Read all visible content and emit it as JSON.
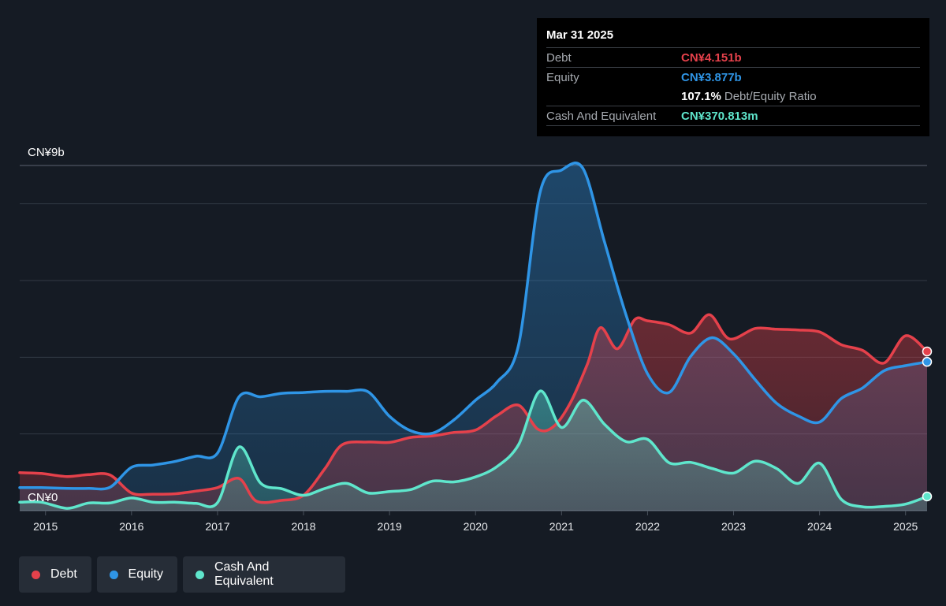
{
  "colors": {
    "debt": "#e5414b",
    "equity": "#2f95e6",
    "cash": "#5fe6cc",
    "background": "#151b24",
    "grid": "#323a44"
  },
  "tooltip": {
    "date": "Mar 31 2025",
    "debt_label": "Debt",
    "debt_value": "CN¥4.151b",
    "equity_label": "Equity",
    "equity_value": "CN¥3.877b",
    "ratio_value": "107.1%",
    "ratio_label": "Debt/Equity Ratio",
    "cash_label": "Cash And Equivalent",
    "cash_value": "CN¥370.813m"
  },
  "legend": {
    "debt": "Debt",
    "equity": "Equity",
    "cash": "Cash And Equivalent"
  },
  "chart_data": {
    "type": "area",
    "y_unit": "CN¥ billions",
    "ylim": [
      0,
      9
    ],
    "y_tick_labels": [
      "CN¥0",
      "CN¥9b"
    ],
    "x_tick_labels": [
      "2015",
      "2016",
      "2017",
      "2018",
      "2019",
      "2020",
      "2021",
      "2022",
      "2023",
      "2024",
      "2025"
    ],
    "x_range": [
      2014.7,
      2025.25
    ],
    "grid": true,
    "series": [
      {
        "name": "Debt",
        "points": [
          [
            2014.7,
            0.99
          ],
          [
            2014.95,
            0.97
          ],
          [
            2015.25,
            0.89
          ],
          [
            2015.5,
            0.94
          ],
          [
            2015.75,
            0.93
          ],
          [
            2016.0,
            0.46
          ],
          [
            2016.25,
            0.43
          ],
          [
            2016.5,
            0.44
          ],
          [
            2016.75,
            0.51
          ],
          [
            2017.0,
            0.6
          ],
          [
            2017.25,
            0.84
          ],
          [
            2017.45,
            0.25
          ],
          [
            2017.75,
            0.27
          ],
          [
            2018.0,
            0.4
          ],
          [
            2018.25,
            1.1
          ],
          [
            2018.45,
            1.72
          ],
          [
            2018.75,
            1.79
          ],
          [
            2019.0,
            1.78
          ],
          [
            2019.25,
            1.91
          ],
          [
            2019.5,
            1.95
          ],
          [
            2019.75,
            2.04
          ],
          [
            2020.0,
            2.1
          ],
          [
            2020.25,
            2.48
          ],
          [
            2020.5,
            2.75
          ],
          [
            2020.72,
            2.13
          ],
          [
            2020.9,
            2.18
          ],
          [
            2021.1,
            2.8
          ],
          [
            2021.3,
            3.82
          ],
          [
            2021.45,
            4.77
          ],
          [
            2021.65,
            4.22
          ],
          [
            2021.85,
            4.98
          ],
          [
            2022.0,
            4.95
          ],
          [
            2022.25,
            4.85
          ],
          [
            2022.5,
            4.63
          ],
          [
            2022.72,
            5.11
          ],
          [
            2022.95,
            4.48
          ],
          [
            2023.25,
            4.75
          ],
          [
            2023.5,
            4.73
          ],
          [
            2023.75,
            4.71
          ],
          [
            2024.0,
            4.66
          ],
          [
            2024.25,
            4.33
          ],
          [
            2024.5,
            4.18
          ],
          [
            2024.75,
            3.85
          ],
          [
            2025.0,
            4.56
          ],
          [
            2025.25,
            4.15
          ]
        ]
      },
      {
        "name": "Equity",
        "points": [
          [
            2014.7,
            0.6
          ],
          [
            2014.95,
            0.6
          ],
          [
            2015.25,
            0.58
          ],
          [
            2015.5,
            0.58
          ],
          [
            2015.75,
            0.61
          ],
          [
            2016.0,
            1.13
          ],
          [
            2016.25,
            1.19
          ],
          [
            2016.5,
            1.28
          ],
          [
            2016.75,
            1.42
          ],
          [
            2017.0,
            1.5
          ],
          [
            2017.25,
            2.97
          ],
          [
            2017.5,
            2.97
          ],
          [
            2017.75,
            3.06
          ],
          [
            2018.0,
            3.08
          ],
          [
            2018.25,
            3.11
          ],
          [
            2018.5,
            3.11
          ],
          [
            2018.75,
            3.1
          ],
          [
            2019.0,
            2.46
          ],
          [
            2019.25,
            2.08
          ],
          [
            2019.5,
            2.02
          ],
          [
            2019.75,
            2.37
          ],
          [
            2020.0,
            2.88
          ],
          [
            2020.25,
            3.35
          ],
          [
            2020.5,
            4.32
          ],
          [
            2020.75,
            8.3
          ],
          [
            2021.0,
            8.88
          ],
          [
            2021.25,
            8.92
          ],
          [
            2021.5,
            7.0
          ],
          [
            2021.75,
            5.1
          ],
          [
            2022.0,
            3.57
          ],
          [
            2022.25,
            3.08
          ],
          [
            2022.5,
            4.02
          ],
          [
            2022.75,
            4.51
          ],
          [
            2023.0,
            4.09
          ],
          [
            2023.25,
            3.42
          ],
          [
            2023.5,
            2.8
          ],
          [
            2023.75,
            2.47
          ],
          [
            2024.0,
            2.31
          ],
          [
            2024.25,
            2.92
          ],
          [
            2024.5,
            3.2
          ],
          [
            2024.75,
            3.65
          ],
          [
            2025.0,
            3.78
          ],
          [
            2025.25,
            3.88
          ]
        ]
      },
      {
        "name": "Cash And Equivalent",
        "points": [
          [
            2014.7,
            0.22
          ],
          [
            2014.95,
            0.22
          ],
          [
            2015.25,
            0.06
          ],
          [
            2015.5,
            0.2
          ],
          [
            2015.75,
            0.2
          ],
          [
            2016.0,
            0.33
          ],
          [
            2016.25,
            0.22
          ],
          [
            2016.5,
            0.22
          ],
          [
            2016.75,
            0.19
          ],
          [
            2017.0,
            0.21
          ],
          [
            2017.25,
            1.66
          ],
          [
            2017.5,
            0.72
          ],
          [
            2017.75,
            0.57
          ],
          [
            2018.0,
            0.4
          ],
          [
            2018.25,
            0.58
          ],
          [
            2018.5,
            0.71
          ],
          [
            2018.75,
            0.46
          ],
          [
            2019.0,
            0.5
          ],
          [
            2019.25,
            0.55
          ],
          [
            2019.5,
            0.77
          ],
          [
            2019.75,
            0.75
          ],
          [
            2020.0,
            0.88
          ],
          [
            2020.25,
            1.15
          ],
          [
            2020.5,
            1.72
          ],
          [
            2020.75,
            3.12
          ],
          [
            2021.0,
            2.17
          ],
          [
            2021.25,
            2.88
          ],
          [
            2021.5,
            2.25
          ],
          [
            2021.75,
            1.8
          ],
          [
            2022.0,
            1.86
          ],
          [
            2022.25,
            1.25
          ],
          [
            2022.5,
            1.26
          ],
          [
            2022.75,
            1.1
          ],
          [
            2023.0,
            0.98
          ],
          [
            2023.25,
            1.29
          ],
          [
            2023.5,
            1.1
          ],
          [
            2023.75,
            0.71
          ],
          [
            2024.0,
            1.24
          ],
          [
            2024.25,
            0.3
          ],
          [
            2024.5,
            0.1
          ],
          [
            2024.75,
            0.11
          ],
          [
            2025.0,
            0.17
          ],
          [
            2025.25,
            0.37
          ]
        ]
      }
    ]
  }
}
